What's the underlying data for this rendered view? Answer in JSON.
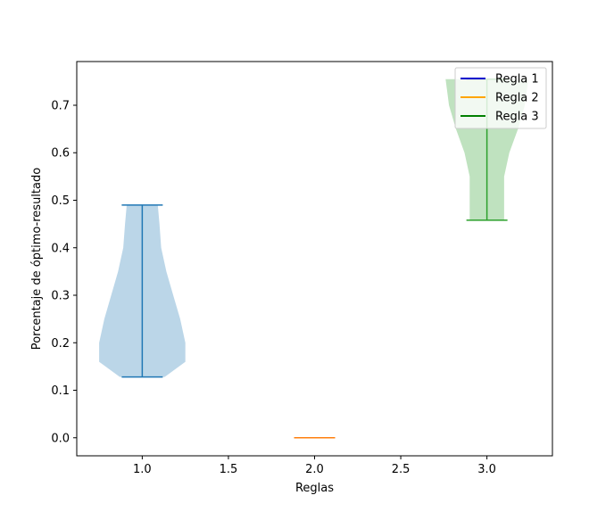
{
  "chart_data": {
    "type": "violin",
    "title": "",
    "xlabel": "Reglas",
    "ylabel": "Porcentaje de óptimo-resultado",
    "xlim": [
      0.62,
      3.38
    ],
    "ylim": [
      -0.038,
      0.792
    ],
    "xticks": [
      1.0,
      1.5,
      2.0,
      2.5,
      3.0
    ],
    "xtick_labels": [
      "1.0",
      "1.5",
      "2.0",
      "2.5",
      "3.0"
    ],
    "yticks": [
      0.0,
      0.1,
      0.2,
      0.3,
      0.4,
      0.5,
      0.6,
      0.7
    ],
    "ytick_labels": [
      "0.0",
      "0.1",
      "0.2",
      "0.3",
      "0.4",
      "0.5",
      "0.6",
      "0.7"
    ],
    "legend": {
      "location": "top-right",
      "entries": [
        {
          "label": "Regla 1",
          "color": "#0000cc"
        },
        {
          "label": "Regla 2",
          "color": "#ffa500"
        },
        {
          "label": "Regla 3",
          "color": "#008000"
        }
      ]
    },
    "series": [
      {
        "name": "Regla 1",
        "position": 1,
        "min": 0.128,
        "max": 0.49,
        "line_color": "#1f77b4",
        "fill_color": "#1f77b4",
        "profile": [
          [
            0.128,
            0.13
          ],
          [
            0.16,
            0.25
          ],
          [
            0.2,
            0.25
          ],
          [
            0.25,
            0.22
          ],
          [
            0.3,
            0.18
          ],
          [
            0.35,
            0.14
          ],
          [
            0.4,
            0.11
          ],
          [
            0.45,
            0.1
          ],
          [
            0.49,
            0.09
          ]
        ]
      },
      {
        "name": "Regla 2",
        "position": 2,
        "min": 0.0,
        "max": 0.0,
        "line_color": "#ff7f0e",
        "fill_color": "#ff7f0e",
        "profile": []
      },
      {
        "name": "Regla 3",
        "position": 3,
        "min": 0.458,
        "max": 0.755,
        "line_color": "#2ca02c",
        "fill_color": "#2ca02c",
        "profile": [
          [
            0.458,
            0.1
          ],
          [
            0.5,
            0.1
          ],
          [
            0.55,
            0.1
          ],
          [
            0.6,
            0.13
          ],
          [
            0.65,
            0.18
          ],
          [
            0.7,
            0.22
          ],
          [
            0.755,
            0.24
          ]
        ]
      }
    ]
  }
}
